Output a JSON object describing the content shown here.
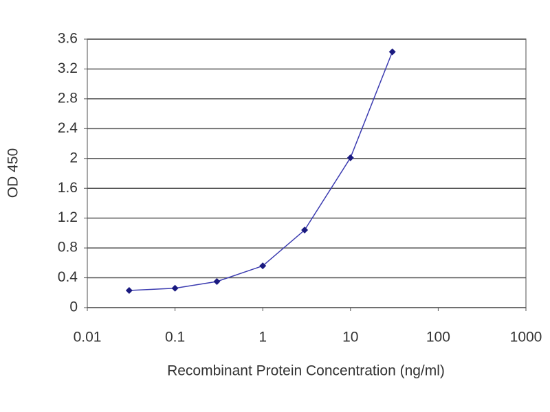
{
  "chart_data": {
    "type": "line",
    "x_label": "Recombinant Protein Concentration (ng/ml)",
    "y_label": "OD 450",
    "x": [
      0.03,
      0.1,
      0.3,
      1,
      3,
      10,
      30
    ],
    "series": [
      {
        "color": "#3b3bb0",
        "values": [
          0.23,
          0.26,
          0.35,
          0.56,
          1.04,
          2.01,
          3.43
        ]
      }
    ],
    "xlim": [
      0.01,
      1000
    ],
    "xticks": [
      0.01,
      0.1,
      1,
      10,
      100,
      1000
    ],
    "xscale": "log",
    "ylim": [
      0,
      3.6
    ],
    "yticks": [
      0,
      0.4,
      0.8,
      1.2,
      1.6,
      2,
      2.4,
      2.8,
      3.2,
      3.6
    ],
    "grid": true
  }
}
